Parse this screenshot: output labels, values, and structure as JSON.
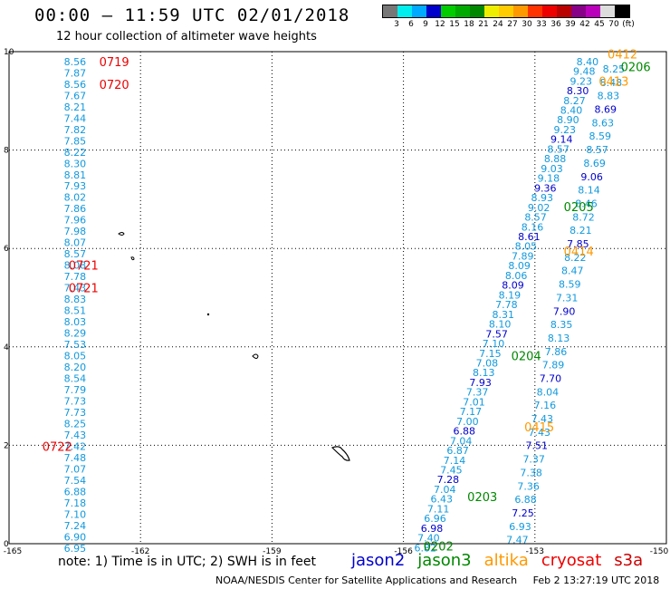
{
  "title": "00:00 – 11:59 UTC 02/01/2018",
  "subtitle": "12 hour collection of altimeter wave heights",
  "scale": {
    "colors": [
      "#777777",
      "#00eeee",
      "#00aaff",
      "#0000cc",
      "#00cc00",
      "#00aa00",
      "#008800",
      "#eeee00",
      "#ffcc00",
      "#ff9900",
      "#ff3300",
      "#ee0000",
      "#bb0000",
      "#880088",
      "#bb00bb",
      "#dddddd",
      "#000000"
    ],
    "labels": [
      "3",
      "6",
      "9",
      "12",
      "15",
      "18",
      "21",
      "24",
      "27",
      "30",
      "33",
      "36",
      "39",
      "42",
      "45",
      "70",
      "(ft)"
    ]
  },
  "colors": {
    "jason2": "#0000cc",
    "jason3": "#008800",
    "altika": "#ff9900",
    "cryosat": "#ee0000",
    "s3a": "#cc0000",
    "obs": "#1199dd"
  },
  "axes": {
    "x_ticks": [
      "-165",
      "-162",
      "-159",
      "-156",
      "-153",
      "-150"
    ],
    "y_ticks": [
      "10",
      "8",
      "6",
      "4",
      "2",
      "0"
    ]
  },
  "chart_data": {
    "type": "scatter",
    "xlabel": "",
    "ylabel": "",
    "xlim": [
      -165,
      -150
    ],
    "ylim": [
      0,
      10
    ],
    "grid": true,
    "left_track": {
      "satellite": "cryosat",
      "lon": -163.8,
      "points": [
        [
          9.8,
          "8.56"
        ],
        [
          9.57,
          "7.87"
        ],
        [
          9.34,
          "8.56"
        ],
        [
          9.11,
          "7.67"
        ],
        [
          8.88,
          "8.21"
        ],
        [
          8.65,
          "7.44"
        ],
        [
          8.42,
          "7.82"
        ],
        [
          8.19,
          "7.85"
        ],
        [
          7.96,
          "8.22"
        ],
        [
          7.73,
          "8.30"
        ],
        [
          7.5,
          "8.81"
        ],
        [
          7.27,
          "7.93"
        ],
        [
          7.04,
          "8.02"
        ],
        [
          6.81,
          "7.86"
        ],
        [
          6.58,
          "7.96"
        ],
        [
          6.35,
          "7.98"
        ],
        [
          6.12,
          "8.07"
        ],
        [
          5.89,
          "8.57"
        ],
        [
          5.66,
          "8.08"
        ],
        [
          5.43,
          "7.78"
        ],
        [
          5.2,
          "7.43"
        ],
        [
          4.97,
          "8.83"
        ],
        [
          4.74,
          "8.51"
        ],
        [
          4.51,
          "8.03"
        ],
        [
          4.28,
          "8.29"
        ],
        [
          4.05,
          "7.53"
        ],
        [
          3.82,
          "8.05"
        ],
        [
          3.59,
          "8.20"
        ],
        [
          3.36,
          "8.54"
        ],
        [
          3.13,
          "7.79"
        ],
        [
          2.9,
          "7.73"
        ],
        [
          2.67,
          "7.73"
        ],
        [
          2.44,
          "8.25"
        ],
        [
          2.21,
          "7.43"
        ],
        [
          1.98,
          "7.42"
        ],
        [
          1.75,
          "7.48"
        ],
        [
          1.52,
          "7.07"
        ],
        [
          1.29,
          "7.54"
        ],
        [
          1.06,
          "6.88"
        ],
        [
          0.83,
          "7.18"
        ],
        [
          0.6,
          "7.10"
        ],
        [
          0.37,
          "7.24"
        ],
        [
          0.14,
          "6.90"
        ],
        [
          -0.09,
          "6.95"
        ]
      ]
    },
    "right_track_a": {
      "satellite": "jason3",
      "lon_start": -155.5,
      "lat_start": -0.08,
      "lon_end": -151.8,
      "lat_end": 9.8,
      "values": [
        "6.82",
        "7.40",
        "6.98",
        "6.96",
        "7.11",
        "6.43",
        "7.04",
        "7.28",
        "7.45",
        "7.14",
        "6.87",
        "7.04",
        "6.88",
        "7.00",
        "7.17",
        "7.01",
        "7.37",
        "7.93",
        "8.13",
        "7.08",
        "7.15",
        "7.10",
        "7.57",
        "8.10",
        "8.31",
        "7.78",
        "8.19",
        "8.09",
        "8.06",
        "8.09",
        "7.89",
        "8.05",
        "8.61",
        "8.16",
        "8.57",
        "9.02",
        "8.93",
        "9.36",
        "9.18",
        "9.03",
        "8.88",
        "8.57",
        "9.14",
        "9.23",
        "8.90",
        "8.40",
        "8.27",
        "8.30",
        "9.23",
        "9.48",
        "8.40"
      ]
    },
    "right_track_b": {
      "satellite": "jason2",
      "lon_start": -153.4,
      "lat_start": 0.08,
      "lon_end": -151.2,
      "lat_end": 9.65,
      "values": [
        "7.47",
        "6.93",
        "7.25",
        "6.88",
        "7.36",
        "7.38",
        "7.37",
        "7.51",
        "7.43",
        "7.43",
        "7.16",
        "8.04",
        "7.70",
        "7.89",
        "7.86",
        "8.13",
        "8.35",
        "7.90",
        "7.31",
        "8.59",
        "8.47",
        "8.22",
        "7.85",
        "8.21",
        "8.72",
        "8.46",
        "8.14",
        "9.06",
        "8.69",
        "8.57",
        "8.59",
        "8.63",
        "8.69",
        "8.83",
        "8.48",
        "8.25"
      ]
    },
    "time_labels": [
      {
        "text": "0719",
        "lon": -162.6,
        "lat": 9.8,
        "sat": "cryosat"
      },
      {
        "text": "0720",
        "lon": -162.6,
        "lat": 9.34,
        "sat": "cryosat"
      },
      {
        "text": "0721",
        "lon": -163.3,
        "lat": 5.66,
        "sat": "cryosat"
      },
      {
        "text": "0721",
        "lon": -163.3,
        "lat": 5.2,
        "sat": "cryosat"
      },
      {
        "text": "0722",
        "lon": -163.9,
        "lat": 1.98,
        "sat": "cryosat"
      },
      {
        "text": "0412",
        "lon": -151.0,
        "lat": 9.95,
        "sat": "altika"
      },
      {
        "text": "0206",
        "lon": -150.7,
        "lat": 9.7,
        "sat": "jason3"
      },
      {
        "text": "0413",
        "lon": -151.2,
        "lat": 9.4,
        "sat": "altika"
      },
      {
        "text": "0205",
        "lon": -152.0,
        "lat": 6.85,
        "sat": "jason3"
      },
      {
        "text": "0414",
        "lon": -152.0,
        "lat": 5.95,
        "sat": "altika"
      },
      {
        "text": "0204",
        "lon": -153.2,
        "lat": 3.82,
        "sat": "jason3"
      },
      {
        "text": "0415",
        "lon": -152.9,
        "lat": 2.38,
        "sat": "altika"
      },
      {
        "text": "0203",
        "lon": -154.2,
        "lat": 0.96,
        "sat": "jason3"
      },
      {
        "text": "0202",
        "lon": -155.2,
        "lat": -0.05,
        "sat": "jason3"
      }
    ]
  },
  "footer_note": "note:  1) Time is in UTC;  2) SWH is in feet",
  "legend": [
    "jason2",
    "jason3",
    "altika",
    "cryosat",
    "s3a"
  ],
  "credit": "NOAA/NESDIS Center for Satellite Applications and Research",
  "timestamp": "Feb  2 13:27:19 UTC 2018"
}
